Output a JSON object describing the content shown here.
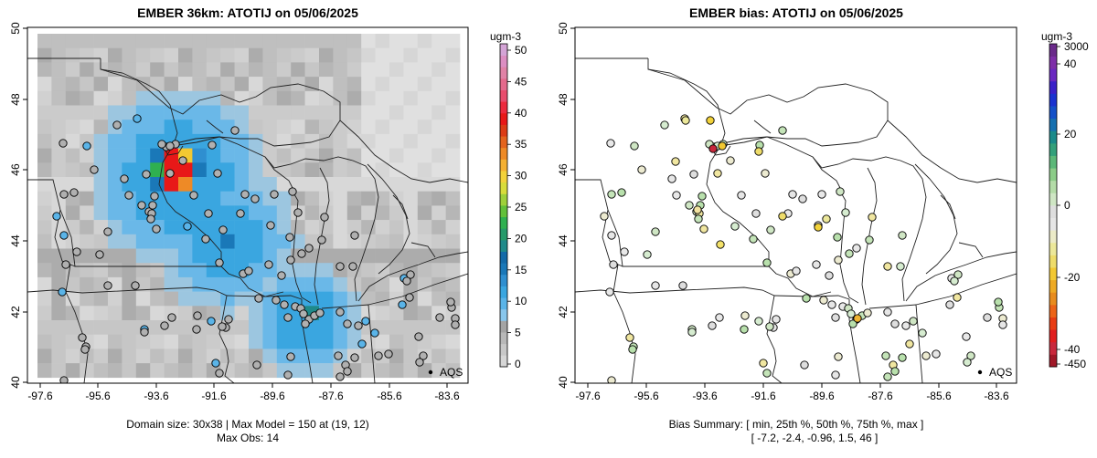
{
  "panels": [
    {
      "title": "EMBER 36km: ATOTIJ on 05/06/2025",
      "x_ticks": [
        "-97.6",
        "-95.6",
        "-93.6",
        "-91.6",
        "-89.6",
        "-87.6",
        "-85.6",
        "-83.6"
      ],
      "y_ticks": [
        "40",
        "42",
        "44",
        "46",
        "48",
        "50"
      ],
      "footer": [
        "Domain size: 30x38 | Max Model = 150 at (19, 12)",
        "Max Obs: 14"
      ],
      "marker_label": "AQS",
      "colorbar": {
        "unit": "ugm-3",
        "labels": [
          "0",
          "5",
          "10",
          "15",
          "20",
          "25",
          "30",
          "35",
          "40",
          "45",
          "50"
        ],
        "colors": [
          "#d6d6d6",
          "#c8c8c8",
          "#b8b8b8",
          "#a4a4a4",
          "#88c6ec",
          "#5ab4e8",
          "#3aa6e0",
          "#2f8fd0",
          "#1a78b8",
          "#136aa8",
          "#1f8a8a",
          "#279a6a",
          "#2fb050",
          "#62c03a",
          "#9ed03a",
          "#d8dc3a",
          "#f2d23a",
          "#f4b032",
          "#ee8a26",
          "#e4641e",
          "#dc3c16",
          "#e81818",
          "#ec2a3e",
          "#e84c6c",
          "#e46a8c",
          "#e082a6",
          "#dc8ec2",
          "#d4a4d6"
        ]
      }
    },
    {
      "title": "EMBER bias: ATOTIJ on 05/06/2025",
      "x_ticks": [
        "-97.6",
        "-95.6",
        "-93.6",
        "-91.6",
        "-89.6",
        "-87.6",
        "-85.6",
        "-83.6"
      ],
      "y_ticks": [
        "40",
        "42",
        "44",
        "46",
        "48",
        "50"
      ],
      "footer": [
        "Bias Summary: [ min, 25th %, 50th %, 75th %, max ]",
        "[ -7.2,   -2.4,   -0.96,   1.5,   46 ]"
      ],
      "marker_label": "AQS",
      "colorbar": {
        "unit": "ugm-3",
        "labels": [
          "3000",
          "40",
          "20",
          "0",
          "-20",
          "-40",
          "-450"
        ],
        "colors": [
          "#a01828",
          "#c8283c",
          "#e01e1e",
          "#e83c14",
          "#ec6418",
          "#e88c1e",
          "#eeaa24",
          "#f2c832",
          "#eedc6a",
          "#ece89a",
          "#ecebc8",
          "#e6e6e6",
          "#dedede",
          "#cfe6c4",
          "#b4dca8",
          "#8ccc88",
          "#5cb878",
          "#33a07a",
          "#1a8a8a",
          "#1670b0",
          "#1450c8",
          "#1a32d0",
          "#3a20c8",
          "#6a28c0",
          "#7e2ea8",
          "#6a2a8a"
        ]
      }
    }
  ]
}
